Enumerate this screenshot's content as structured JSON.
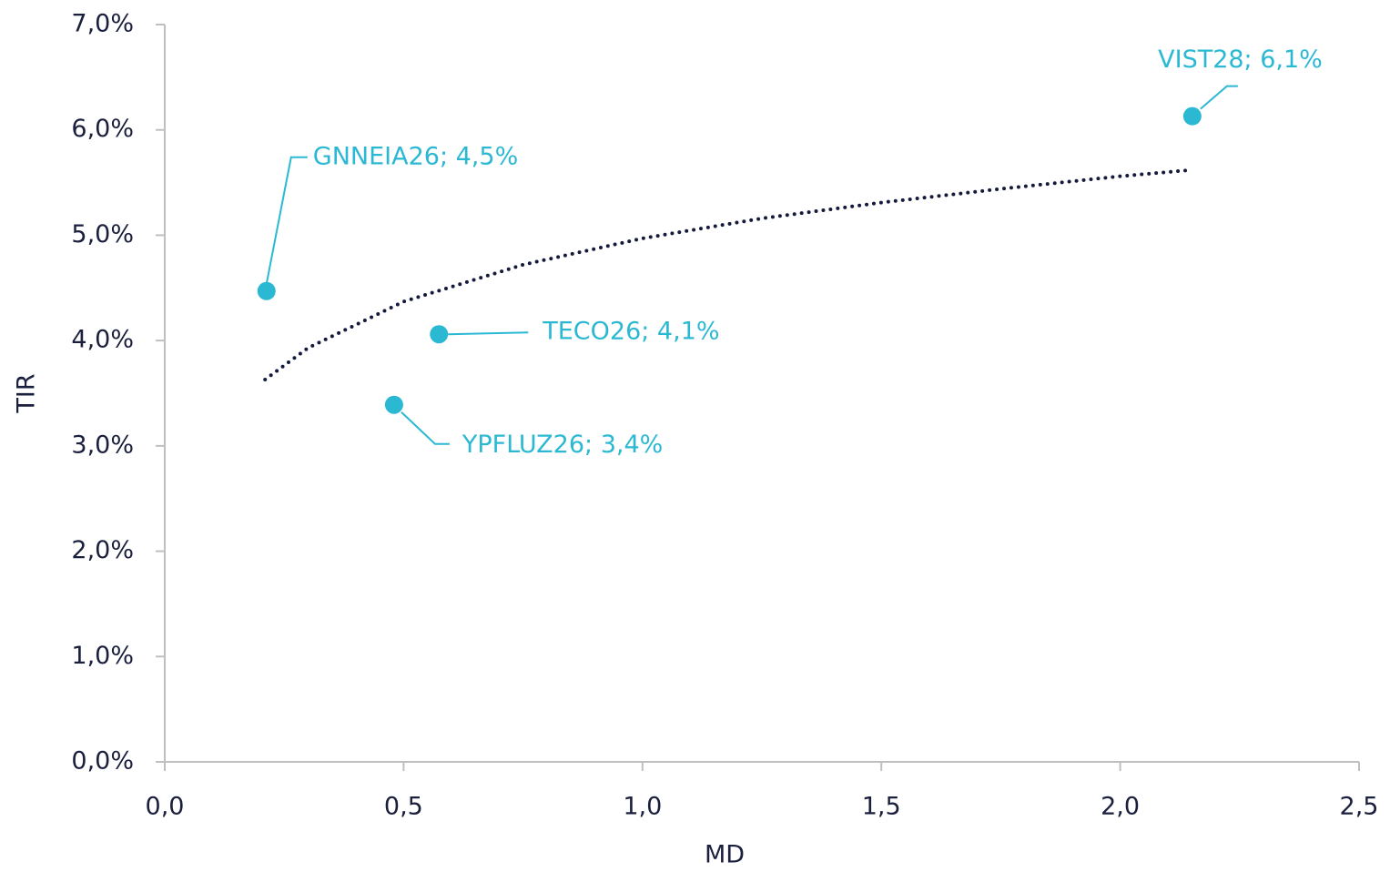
{
  "chart_data": {
    "type": "scatter",
    "x_label": "MD",
    "y_label": "TIR",
    "x": [
      0.213,
      0.574,
      0.48,
      2.151
    ],
    "values": [
      4.47,
      4.06,
      3.39,
      6.13
    ],
    "value_labels": [
      "GNNEIA26; 4,5%",
      "TECO26; 4,1%",
      "YPFLUZ26; 3,4%",
      "VIST28; 6,1%"
    ],
    "color": "#2bb8d3",
    "trendline": {
      "type": "logarithmic",
      "color": "#141a3c",
      "x": [
        0.21,
        0.3,
        0.5,
        0.75,
        1,
        1.25,
        1.5,
        1.75,
        2,
        2.15
      ],
      "values": [
        3.63,
        3.93,
        4.37,
        4.72,
        4.97,
        5.16,
        5.31,
        5.44,
        5.56,
        5.62
      ]
    },
    "xlim": [
      0,
      2.5
    ],
    "xticks": [
      {
        "value": 0,
        "label": "0,0"
      },
      {
        "value": 0.5,
        "label": "0,5"
      },
      {
        "value": 1,
        "label": "1,0"
      },
      {
        "value": 1.5,
        "label": "1,5"
      },
      {
        "value": 2,
        "label": "2,0"
      },
      {
        "value": 2.5,
        "label": "2,5"
      }
    ],
    "ylim": [
      0,
      7
    ],
    "yticks": [
      {
        "value": 0,
        "label": "0,0%"
      },
      {
        "value": 1,
        "label": "1,0%"
      },
      {
        "value": 2,
        "label": "2,0%"
      },
      {
        "value": 3,
        "label": "3,0%"
      },
      {
        "value": 4,
        "label": "4,0%"
      },
      {
        "value": 5,
        "label": "5,0%"
      },
      {
        "value": 6,
        "label": "6,0%"
      },
      {
        "value": 7,
        "label": "7,0%"
      }
    ],
    "grid": false
  }
}
